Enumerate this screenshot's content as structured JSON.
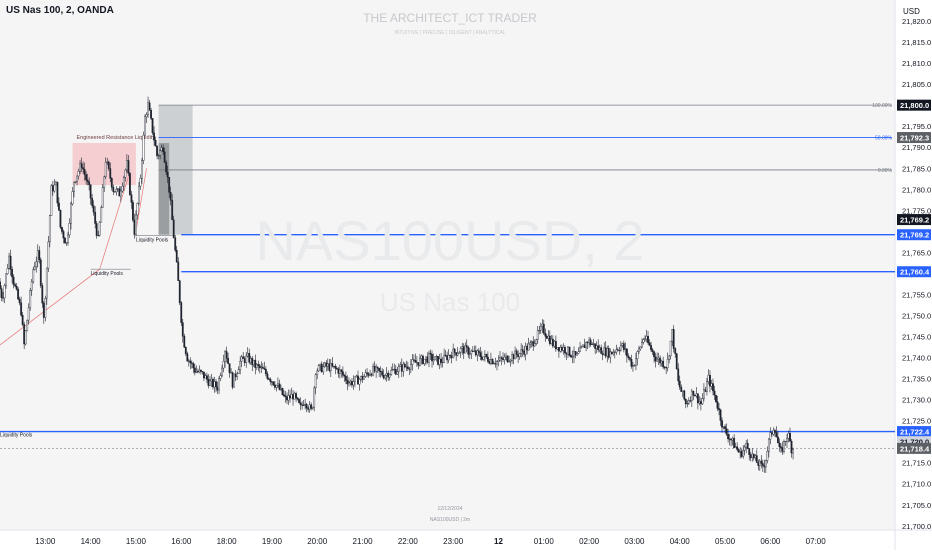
{
  "header": {
    "ticker_title": "US Nas 100, 2, OANDA",
    "currency": "USD"
  },
  "watermark": {
    "top": "THE ARCHITECT_ICT TRADER",
    "sub": "INTUITIVE | PRECISE | DILIGENT | ANALYTICAL",
    "big": "NAS100USD, 2",
    "mid": "US Nas 100",
    "date": "12/12/2024",
    "symbol": "NAS100USD | 2m"
  },
  "colors": {
    "background": "#ffffff",
    "pane": "#f5f5f5",
    "candle": "#1e222d",
    "blue_line": "#2962ff",
    "grey_line": "#787b86",
    "zone_fill": "#f4c7cb",
    "range_box": "#9ea3a8"
  },
  "chart_data": {
    "type": "candlestick",
    "title": "US Nas 100, 2, OANDA",
    "y_axis": {
      "unit": "USD",
      "range": [
        21699,
        21825
      ],
      "ticks": [
        "21,700.0",
        "21,705.0",
        "21,710.0",
        "21,715.0",
        "21,720.0",
        "21,725.0",
        "21,730.0",
        "21,735.0",
        "21,740.0",
        "21,745.0",
        "21,750.0",
        "21,755.0",
        "21,760.0",
        "21,765.0",
        "21,770.0",
        "21,775.0",
        "21,780.0",
        "21,785.0",
        "21,790.0",
        "21,795.0",
        "21,800.0",
        "21,805.0",
        "21,810.0",
        "21,815.0",
        "21,820.0"
      ]
    },
    "x_axis": {
      "range": [
        "12:00",
        "07:45"
      ],
      "ticks": [
        {
          "label": "13:00",
          "t": "13:00",
          "bold": false
        },
        {
          "label": "14:00",
          "t": "14:00",
          "bold": false
        },
        {
          "label": "15:00",
          "t": "15:00",
          "bold": false
        },
        {
          "label": "16:00",
          "t": "16:00",
          "bold": false
        },
        {
          "label": "18:00",
          "t": "17:00",
          "bold": false
        },
        {
          "label": "19:00",
          "t": "18:00",
          "bold": false
        },
        {
          "label": "20:00",
          "t": "19:00",
          "bold": false
        },
        {
          "label": "21:00",
          "t": "20:00",
          "bold": false
        },
        {
          "label": "22:00",
          "t": "21:00",
          "bold": false
        },
        {
          "label": "23:00",
          "t": "22:00",
          "bold": false
        },
        {
          "label": "12",
          "t": "23:00",
          "bold": true
        },
        {
          "label": "01:00",
          "t": "00:00",
          "bold": false
        },
        {
          "label": "02:00",
          "t": "01:00",
          "bold": false
        },
        {
          "label": "03:00",
          "t": "02:00",
          "bold": false
        },
        {
          "label": "04:00",
          "t": "03:00",
          "bold": false
        },
        {
          "label": "05:00",
          "t": "04:00",
          "bold": false
        },
        {
          "label": "06:00",
          "t": "05:00",
          "bold": false
        },
        {
          "label": "07:00",
          "t": "06:00",
          "bold": false
        }
      ]
    },
    "price_path": [
      [
        "12:00",
        21758
      ],
      [
        "12:05",
        21754
      ],
      [
        "12:14",
        21764
      ],
      [
        "12:20",
        21758
      ],
      [
        "12:30",
        21751
      ],
      [
        "12:34",
        21743
      ],
      [
        "12:46",
        21761
      ],
      [
        "12:53",
        21765
      ],
      [
        "13:00",
        21749
      ],
      [
        "13:10",
        21780
      ],
      [
        "13:16",
        21781
      ],
      [
        "13:22",
        21771
      ],
      [
        "13:30",
        21767
      ],
      [
        "13:40",
        21782
      ],
      [
        "13:50",
        21786
      ],
      [
        "14:00",
        21780
      ],
      [
        "14:12",
        21768
      ],
      [
        "14:22",
        21787
      ],
      [
        "14:32",
        21780
      ],
      [
        "14:40",
        21779
      ],
      [
        "14:50",
        21786
      ],
      [
        "15:00",
        21770
      ],
      [
        "15:08",
        21783
      ],
      [
        "15:14",
        21797
      ],
      [
        "15:18",
        21800
      ],
      [
        "15:24",
        21794
      ],
      [
        "15:30",
        21788
      ],
      [
        "15:38",
        21790
      ],
      [
        "15:46",
        21780
      ],
      [
        "15:53",
        21767
      ],
      [
        "15:57",
        21760
      ],
      [
        "16:04",
        21745
      ],
      [
        "16:10",
        21740
      ],
      [
        "16:20",
        21737
      ],
      [
        "16:30",
        21736
      ],
      [
        "16:40",
        21734
      ],
      [
        "16:50",
        21733
      ],
      [
        "17:00",
        21742
      ],
      [
        "17:10",
        21734
      ],
      [
        "17:20",
        21739
      ],
      [
        "17:30",
        21740
      ],
      [
        "17:40",
        21738
      ],
      [
        "17:50",
        21737
      ],
      [
        "18:00",
        21735
      ],
      [
        "18:10",
        21733
      ],
      [
        "18:20",
        21730
      ],
      [
        "18:30",
        21731
      ],
      [
        "18:40",
        21728
      ],
      [
        "18:45",
        21730
      ],
      [
        "18:55",
        21727
      ],
      [
        "19:00",
        21737
      ],
      [
        "19:15",
        21738
      ],
      [
        "19:30",
        21737
      ],
      [
        "19:45",
        21734
      ],
      [
        "20:00",
        21735
      ],
      [
        "20:15",
        21737
      ],
      [
        "20:30",
        21736
      ],
      [
        "20:45",
        21737
      ],
      [
        "21:00",
        21738
      ],
      [
        "21:15",
        21739
      ],
      [
        "21:30",
        21740
      ],
      [
        "21:45",
        21739
      ],
      [
        "22:00",
        21741
      ],
      [
        "22:15",
        21742
      ],
      [
        "22:30",
        21741
      ],
      [
        "22:45",
        21740
      ],
      [
        "23:00",
        21739
      ],
      [
        "23:15",
        21740
      ],
      [
        "23:30",
        21741
      ],
      [
        "23:45",
        21743
      ],
      [
        "00:00",
        21747
      ],
      [
        "00:15",
        21743
      ],
      [
        "00:30",
        21742
      ],
      [
        "00:45",
        21740
      ],
      [
        "01:00",
        21744
      ],
      [
        "01:15",
        21742
      ],
      [
        "01:30",
        21741
      ],
      [
        "01:45",
        21743
      ],
      [
        "02:00",
        21738
      ],
      [
        "02:15",
        21745
      ],
      [
        "02:30",
        21740
      ],
      [
        "02:45",
        21738
      ],
      [
        "02:52",
        21746
      ],
      [
        "03:00",
        21734
      ],
      [
        "03:10",
        21729
      ],
      [
        "03:20",
        21732
      ],
      [
        "03:30",
        21729
      ],
      [
        "03:40",
        21735
      ],
      [
        "03:50",
        21730
      ],
      [
        "04:00",
        21723
      ],
      [
        "04:08",
        21721
      ],
      [
        "04:15",
        21719
      ],
      [
        "04:22",
        21717
      ],
      [
        "04:30",
        21719
      ],
      [
        "04:40",
        21716
      ],
      [
        "04:50",
        21714
      ],
      [
        "04:55",
        21715
      ],
      [
        "05:00",
        21720
      ],
      [
        "05:07",
        21724
      ],
      [
        "05:15",
        21717
      ],
      [
        "05:25",
        21722
      ],
      [
        "05:30",
        21718.4
      ]
    ],
    "annotations": {
      "levels": [
        {
          "name": "liquidity-pools-left",
          "price": 21722.4,
          "label": "21,722.4",
          "text": "Liquidity Pools",
          "from": "12:00",
          "color": "blue"
        },
        {
          "name": "level-21760",
          "price": 21760.4,
          "label": "21,760.4",
          "text": "",
          "from": "16:00",
          "color": "blue"
        },
        {
          "name": "level-21769",
          "price": 21769.2,
          "label": "21,769.2",
          "text": "",
          "from": "16:00",
          "color": "blue"
        }
      ],
      "last_price": {
        "price": 21718.4,
        "label": "21,718.4"
      },
      "last_price_secondary": {
        "price": 21720,
        "label": "21,720.0"
      },
      "fib_levels": [
        {
          "price": 21800.0,
          "pct": "100.00%",
          "label": "21,800.0",
          "color": "grey"
        },
        {
          "price": 21792.3,
          "pct": "50.00%",
          "label": "21,792.3",
          "color": "blue"
        },
        {
          "price": 21784.6,
          "pct": "0.00%",
          "label": "",
          "color": "grey"
        }
      ],
      "price_tags": [
        {
          "price": 21769.2,
          "label": "21,769.2",
          "style": "dark"
        }
      ],
      "resistance_zone": {
        "text": "Engineered Resistance Liquidity",
        "from": "13:36",
        "to": "15:00",
        "price_top": 21791,
        "price_bottom": 21781
      },
      "liquidity_pool_labels": [
        {
          "text": "Liquidity Pools",
          "at": "14:00",
          "price": 21761
        },
        {
          "text": "Liquidity Pools",
          "at": "15:00",
          "price": 21769
        }
      ],
      "trend_lines": [
        {
          "from": [
            "12:00",
            21743
          ],
          "to": [
            "14:12",
            21761
          ]
        },
        {
          "from": [
            "14:12",
            21761
          ],
          "to": [
            "14:50",
            21783
          ]
        },
        {
          "from": [
            "15:00",
            21770
          ],
          "to": [
            "15:14",
            21785
          ]
        }
      ],
      "range_box": {
        "from": "15:30",
        "to": "16:15",
        "top": 21800,
        "bottom": 21769.2
      },
      "range_box_dark": {
        "from": "15:30",
        "to": "15:44",
        "top": 21791,
        "bottom": 21769.2
      }
    }
  }
}
